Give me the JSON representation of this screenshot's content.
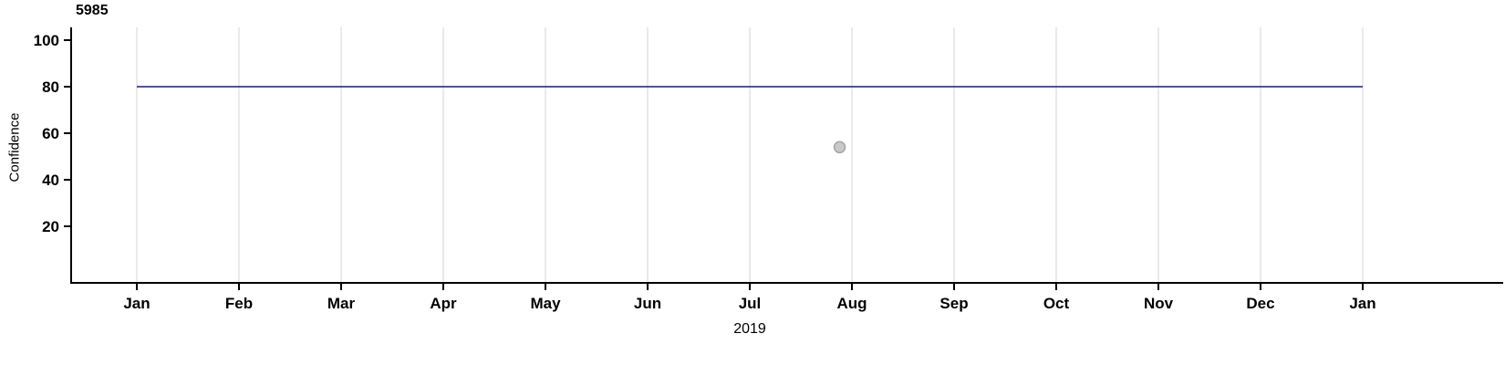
{
  "chart_data": {
    "type": "line",
    "title": "5985",
    "xlabel": "2019",
    "ylabel": "Confidence",
    "x_ticks": [
      "Jan",
      "Feb",
      "Mar",
      "Apr",
      "May",
      "Jun",
      "Jul",
      "Aug",
      "Sep",
      "Oct",
      "Nov",
      "Dec",
      "Jan"
    ],
    "x_axis_note": "months of 2019 through Jan 2020",
    "y_ticks": [
      20,
      40,
      60,
      80,
      100
    ],
    "ylim": [
      0,
      105
    ],
    "grid": "vertical-monthly",
    "legend": "none",
    "colors": {
      "line": "#1a1a7e",
      "gridline": "#e4e4e4",
      "axis": "#000000",
      "point_fill": "#c9c9c9",
      "point_stroke": "#a6a6a6",
      "background": "#ffffff"
    },
    "series": [
      {
        "name": "confidence",
        "shape": "horizontal-line",
        "y": 80,
        "x_start_month_index": 0,
        "x_end_month_index": 12
      }
    ],
    "points": [
      {
        "name": "outlier-point",
        "x_month_index": 6.88,
        "y": 54
      }
    ]
  }
}
